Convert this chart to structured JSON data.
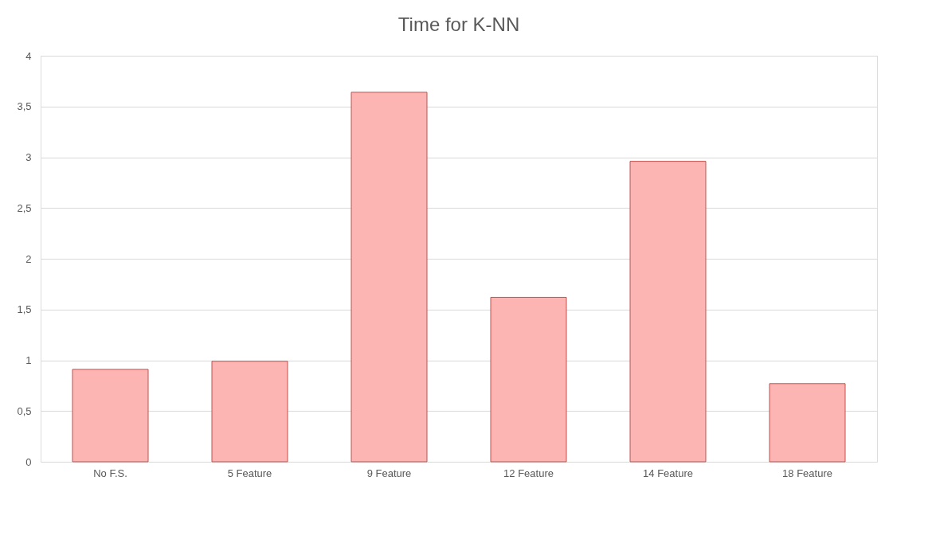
{
  "chart_data": {
    "type": "bar",
    "title": "Time for K-NN",
    "categories": [
      "No F.S.",
      "5 Feature",
      "9 Feature",
      "12 Feature",
      "14 Feature",
      "18 Feature"
    ],
    "values": [
      0.91,
      0.99,
      3.64,
      1.62,
      2.96,
      0.77
    ],
    "color": "#fdb5b3",
    "ylim": [
      0,
      4
    ],
    "yticks": [
      0,
      {
        "value": 0.5,
        "label": "0,5"
      },
      1,
      {
        "value": 1.5,
        "label": "1,5"
      },
      2,
      {
        "value": 2.5,
        "label": "2,5"
      },
      3,
      {
        "value": 3.5,
        "label": "3,5"
      },
      4
    ],
    "grid": "y",
    "legend": false
  }
}
